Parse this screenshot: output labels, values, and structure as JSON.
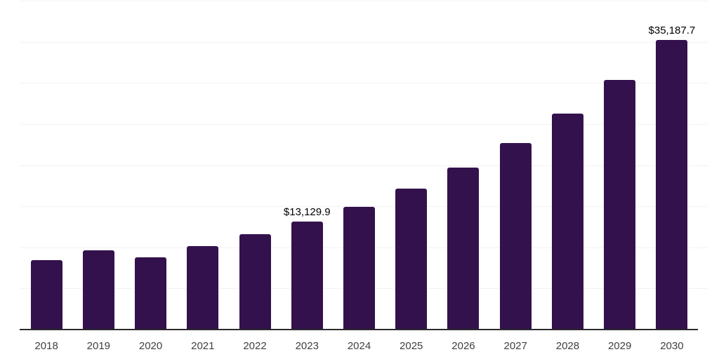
{
  "chart_data": {
    "type": "bar",
    "title": "",
    "xlabel": "",
    "ylabel": "",
    "categories": [
      "2018",
      "2019",
      "2020",
      "2021",
      "2022",
      "2023",
      "2024",
      "2025",
      "2026",
      "2027",
      "2028",
      "2029",
      "2030"
    ],
    "values": [
      8450,
      9650,
      8800,
      10150,
      11600,
      13129.9,
      14950,
      17150,
      19700,
      22700,
      26300,
      30400,
      35187.7
    ],
    "data_labels": {
      "2023": "$13,129.9",
      "2030": "$35,187.7"
    },
    "ylim": [
      0,
      40000
    ],
    "grid_step": 5000,
    "grid": true,
    "legend": "none",
    "colors": {
      "bar": "#33114d",
      "gridline": "#f2f2f2",
      "axis_line": "#2a2a2a",
      "data_label": "#000000",
      "tick_label": "#3f3f3f",
      "background": "#ffffff"
    }
  }
}
